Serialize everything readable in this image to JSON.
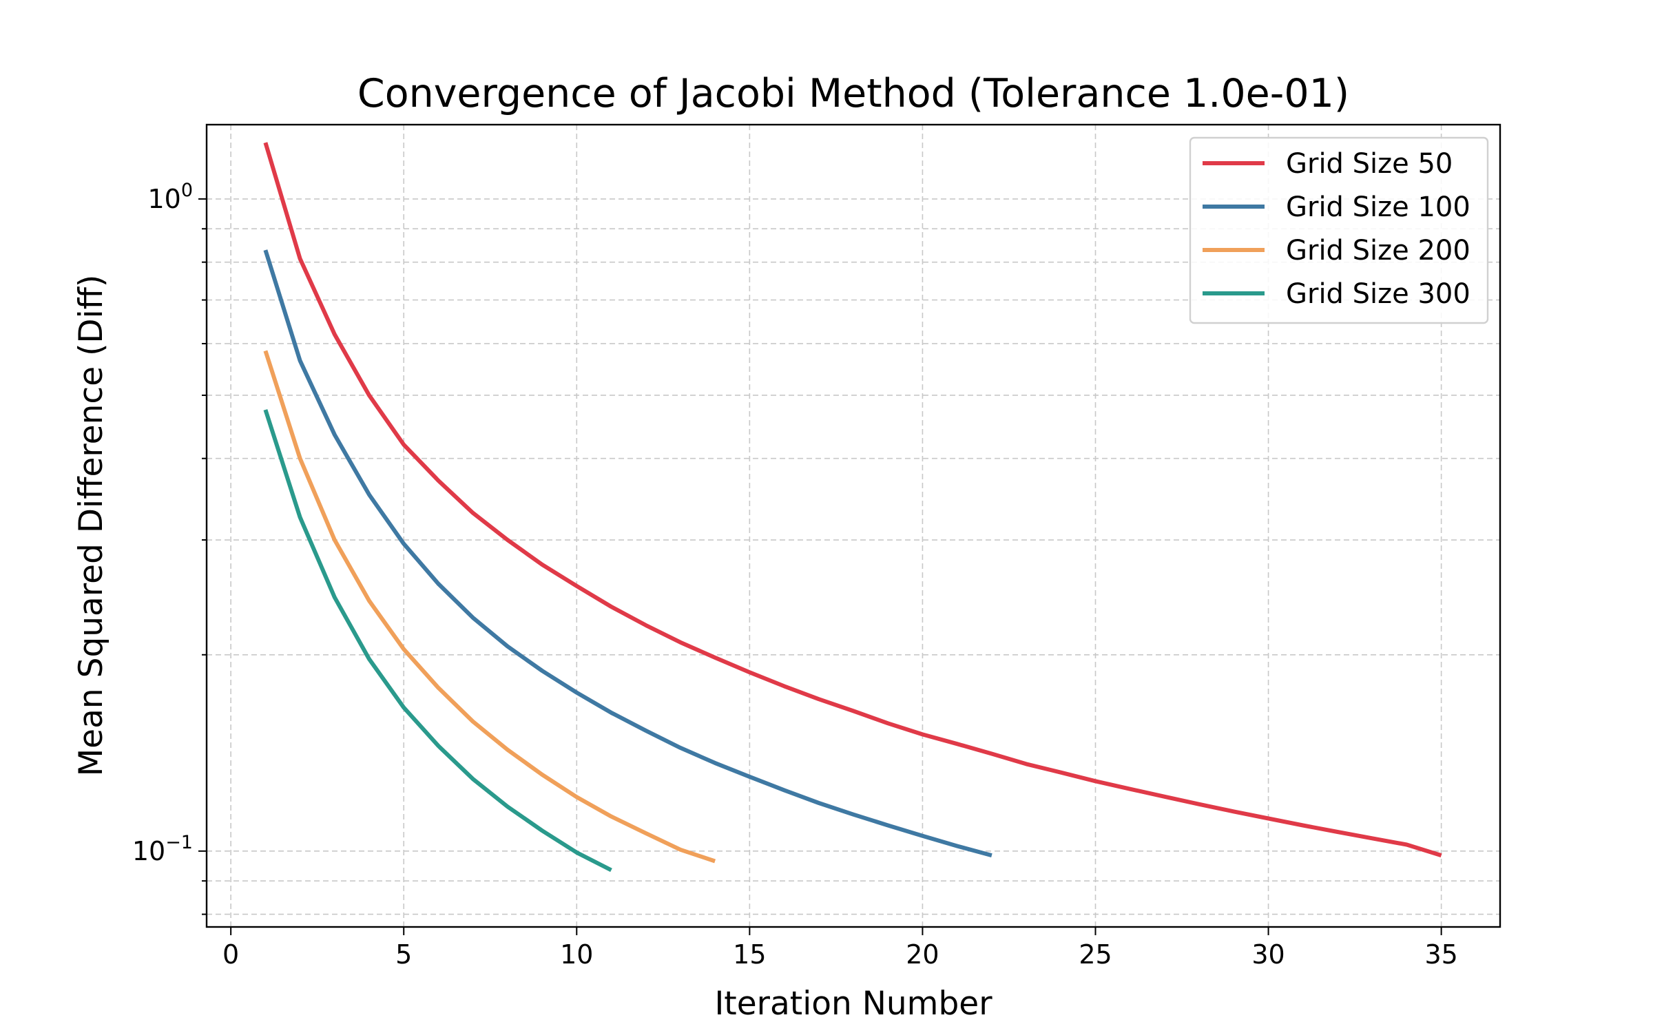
{
  "chart_data": {
    "type": "line",
    "title": "Convergence of Jacobi Method (Tolerance 1.0e-01)",
    "xlabel": "Iteration Number",
    "ylabel": "Mean Squared Difference (Diff)",
    "xlim": [
      -0.7,
      36.7
    ],
    "ylim": [
      0.0765,
      1.3
    ],
    "yscale": "log",
    "grid": true,
    "legend_position": "top-right",
    "xticks": [
      0,
      5,
      10,
      15,
      20,
      25,
      30,
      35
    ],
    "yticks": [
      {
        "value": 1.0,
        "base": "10",
        "exp": "0"
      },
      {
        "value": 0.1,
        "base": "10",
        "exp": "−1"
      }
    ],
    "yminor": [
      0.08,
      0.09,
      0.2,
      0.3,
      0.4,
      0.5,
      0.6,
      0.7,
      0.8,
      0.9
    ],
    "series": [
      {
        "name": "Grid Size 50",
        "color": "#e03a48",
        "x": [
          1,
          2,
          3,
          4,
          5,
          6,
          7,
          8,
          9,
          10,
          11,
          12,
          13,
          14,
          15,
          16,
          17,
          18,
          19,
          20,
          21,
          22,
          23,
          24,
          25,
          26,
          27,
          28,
          29,
          30,
          31,
          32,
          33,
          34,
          35
        ],
        "y": [
          1.22,
          0.81,
          0.62,
          0.5,
          0.42,
          0.37,
          0.33,
          0.3,
          0.275,
          0.255,
          0.237,
          0.222,
          0.209,
          0.198,
          0.188,
          0.179,
          0.171,
          0.164,
          0.157,
          0.151,
          0.146,
          0.141,
          0.136,
          0.132,
          0.128,
          0.1245,
          0.1212,
          0.118,
          0.115,
          0.1122,
          0.1095,
          0.107,
          0.1046,
          0.1023,
          0.0985
        ]
      },
      {
        "name": "Grid Size 100",
        "color": "#3f79a3",
        "x": [
          1,
          2,
          3,
          4,
          5,
          6,
          7,
          8,
          9,
          10,
          11,
          12,
          13,
          14,
          15,
          16,
          17,
          18,
          19,
          20,
          21,
          22
        ],
        "y": [
          0.835,
          0.565,
          0.435,
          0.352,
          0.296,
          0.257,
          0.228,
          0.206,
          0.189,
          0.175,
          0.163,
          0.153,
          0.144,
          0.1365,
          0.13,
          0.124,
          0.1185,
          0.1138,
          0.1095,
          0.1055,
          0.1018,
          0.0985
        ]
      },
      {
        "name": "Grid Size 200",
        "color": "#f0a05a",
        "x": [
          1,
          2,
          3,
          4,
          5,
          6,
          7,
          8,
          9,
          10,
          11,
          12,
          13,
          14
        ],
        "y": [
          0.585,
          0.4,
          0.3,
          0.242,
          0.204,
          0.178,
          0.158,
          0.143,
          0.131,
          0.121,
          0.113,
          0.1065,
          0.1005,
          0.0965
        ]
      },
      {
        "name": "Grid Size 300",
        "color": "#2a9a8c",
        "x": [
          1,
          2,
          3,
          4,
          5,
          6,
          7,
          8,
          9,
          10,
          11
        ],
        "y": [
          0.475,
          0.325,
          0.245,
          0.197,
          0.166,
          0.145,
          0.129,
          0.117,
          0.1075,
          0.0995,
          0.0935
        ]
      }
    ]
  }
}
